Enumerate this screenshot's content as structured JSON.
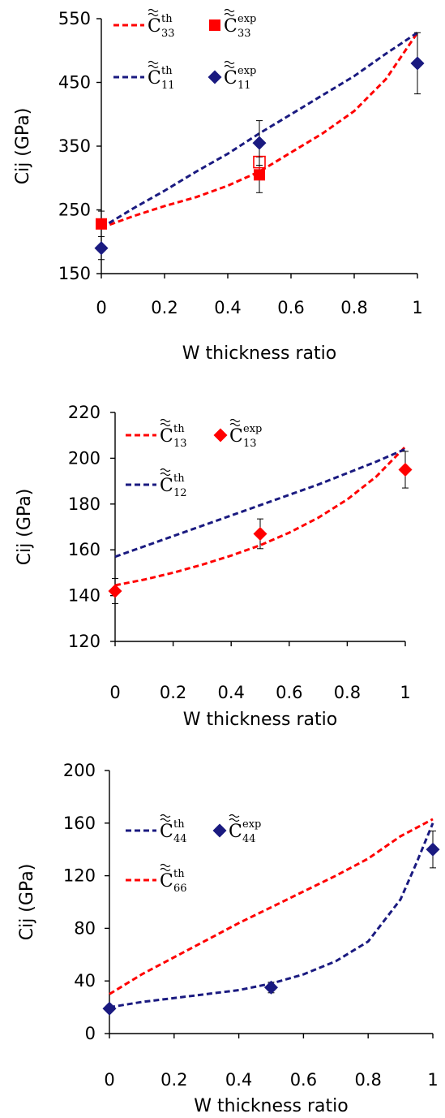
{
  "chart_data": [
    {
      "type": "line",
      "xlabel": "W thickness ratio",
      "ylabel": "Cij (GPa)",
      "xlim": [
        0,
        1
      ],
      "ylim": [
        150,
        550
      ],
      "xticks": [
        0,
        0.2,
        0.4,
        0.6,
        0.8,
        1
      ],
      "xtick_labels": [
        "0",
        "0.2",
        "0.4",
        "0.6",
        "0.8",
        "1"
      ],
      "yticks": [
        150,
        250,
        350,
        450,
        550
      ],
      "ytick_labels": [
        "150",
        "250",
        "350",
        "450",
        "550"
      ],
      "legend_position": "top-left",
      "legend": [
        {
          "kind": "line",
          "color": "#ff0000",
          "main": "C",
          "sup": "th",
          "sub": "33"
        },
        {
          "kind": "marker",
          "marker": "square",
          "color": "#ff0000",
          "main": "C",
          "sup": "exp",
          "sub": "33"
        },
        {
          "kind": "line",
          "color": "#1a1a80",
          "main": "C",
          "sup": "th",
          "sub": "11"
        },
        {
          "kind": "marker",
          "marker": "diamond",
          "color": "#1a1a80",
          "main": "C",
          "sup": "exp",
          "sub": "11"
        }
      ],
      "series": [
        {
          "kind": "line",
          "color": "#ff0000",
          "points": [
            [
              0,
              222
            ],
            [
              0.1,
              240
            ],
            [
              0.2,
              256
            ],
            [
              0.3,
              270
            ],
            [
              0.4,
              288
            ],
            [
              0.5,
              310
            ],
            [
              0.6,
              340
            ],
            [
              0.7,
              370
            ],
            [
              0.8,
              405
            ],
            [
              0.9,
              455
            ],
            [
              1,
              528
            ]
          ]
        },
        {
          "kind": "line",
          "color": "#1a1a80",
          "points": [
            [
              0,
              222
            ],
            [
              0.1,
              252
            ],
            [
              0.2,
              280
            ],
            [
              0.3,
              310
            ],
            [
              0.4,
              338
            ],
            [
              0.5,
              370
            ],
            [
              0.6,
              400
            ],
            [
              0.7,
              430
            ],
            [
              0.8,
              460
            ],
            [
              0.9,
              495
            ],
            [
              1,
              528
            ]
          ]
        },
        {
          "kind": "marker",
          "marker": "square",
          "color": "#ff0000",
          "filled": true,
          "points": [
            {
              "x": 0,
              "y": 228,
              "err": 20
            },
            {
              "x": 0.5,
              "y": 305,
              "err": 28
            }
          ]
        },
        {
          "kind": "marker",
          "marker": "square",
          "color": "#ff0000",
          "filled": false,
          "points": [
            {
              "x": 0.5,
              "y": 325,
              "err": 0
            }
          ]
        },
        {
          "kind": "marker",
          "marker": "diamond",
          "color": "#1a1a80",
          "filled": true,
          "points": [
            {
              "x": 0,
              "y": 190,
              "err": 18
            },
            {
              "x": 0.5,
              "y": 355,
              "err": 35
            },
            {
              "x": 1,
              "y": 480,
              "err": 48
            }
          ]
        }
      ]
    },
    {
      "type": "line",
      "xlabel": "W thickness ratio",
      "ylabel": "Cij (GPa)",
      "xlim": [
        0,
        1
      ],
      "ylim": [
        120,
        220
      ],
      "xticks": [
        0,
        0.2,
        0.4,
        0.6,
        0.8,
        1
      ],
      "xtick_labels": [
        "0",
        "0.2",
        "0.4",
        "0.6",
        "0.8",
        "1"
      ],
      "yticks": [
        120,
        140,
        160,
        180,
        200,
        220
      ],
      "ytick_labels": [
        "120",
        "140",
        "160",
        "180",
        "200",
        "220"
      ],
      "legend_position": "top-left",
      "legend": [
        {
          "kind": "line",
          "color": "#ff0000",
          "main": "C",
          "sup": "th",
          "sub": "13"
        },
        {
          "kind": "marker",
          "marker": "diamond",
          "color": "#ff0000",
          "main": "C",
          "sup": "exp",
          "sub": "13"
        },
        {
          "kind": "line",
          "color": "#1a1a80",
          "main": "C",
          "sup": "th",
          "sub": "12"
        }
      ],
      "series": [
        {
          "kind": "line",
          "color": "#ff0000",
          "points": [
            [
              0,
              144.5
            ],
            [
              0.1,
              147
            ],
            [
              0.2,
              150
            ],
            [
              0.3,
              153.5
            ],
            [
              0.4,
              157.5
            ],
            [
              0.5,
              162
            ],
            [
              0.6,
              167.5
            ],
            [
              0.7,
              174
            ],
            [
              0.8,
              182
            ],
            [
              0.9,
              192
            ],
            [
              1,
              205
            ]
          ]
        },
        {
          "kind": "line",
          "color": "#1a1a80",
          "points": [
            [
              0,
              157
            ],
            [
              0.1,
              161.5
            ],
            [
              0.2,
              166
            ],
            [
              0.3,
              170.5
            ],
            [
              0.4,
              175
            ],
            [
              0.5,
              179.5
            ],
            [
              0.6,
              184
            ],
            [
              0.7,
              188.5
            ],
            [
              0.8,
              193.5
            ],
            [
              0.9,
              198.5
            ],
            [
              1,
              204
            ]
          ]
        },
        {
          "kind": "marker",
          "marker": "diamond",
          "color": "#ff0000",
          "filled": true,
          "points": [
            {
              "x": 0,
              "y": 142,
              "err": 5.5
            },
            {
              "x": 0.5,
              "y": 167,
              "err": 6.5
            },
            {
              "x": 1,
              "y": 195,
              "err": 8
            }
          ]
        }
      ]
    },
    {
      "type": "line",
      "xlabel": "W thickness ratio",
      "ylabel": "Cij (GPa)",
      "xlim": [
        0,
        1
      ],
      "ylim": [
        0,
        200
      ],
      "xticks": [
        0,
        0.2,
        0.4,
        0.6,
        0.8,
        1
      ],
      "xtick_labels": [
        "0",
        "0.2",
        "0.4",
        "0.6",
        "0.8",
        "1"
      ],
      "yticks": [
        0,
        40,
        80,
        120,
        160,
        200
      ],
      "ytick_labels": [
        "0",
        "40",
        "80",
        "120",
        "160",
        "200"
      ],
      "legend_position": "top-left",
      "legend": [
        {
          "kind": "line",
          "color": "#1a1a80",
          "main": "C",
          "sup": "th",
          "sub": "44"
        },
        {
          "kind": "marker",
          "marker": "diamond",
          "color": "#1a1a80",
          "main": "C",
          "sup": "exp",
          "sub": "44"
        },
        {
          "kind": "line",
          "color": "#ff0000",
          "main": "C",
          "sup": "th",
          "sub": "66"
        }
      ],
      "series": [
        {
          "kind": "line",
          "color": "#ff0000",
          "points": [
            [
              0,
              30
            ],
            [
              0.1,
              45
            ],
            [
              0.2,
              58
            ],
            [
              0.3,
              71
            ],
            [
              0.4,
              84
            ],
            [
              0.5,
              96
            ],
            [
              0.6,
              108
            ],
            [
              0.7,
              120
            ],
            [
              0.8,
              133
            ],
            [
              0.9,
              150
            ],
            [
              1,
              163
            ]
          ]
        },
        {
          "kind": "line",
          "color": "#1a1a80",
          "points": [
            [
              0,
              20
            ],
            [
              0.1,
              24
            ],
            [
              0.2,
              27
            ],
            [
              0.3,
              30
            ],
            [
              0.4,
              33
            ],
            [
              0.5,
              38
            ],
            [
              0.6,
              45
            ],
            [
              0.7,
              55
            ],
            [
              0.8,
              70
            ],
            [
              0.9,
              102
            ],
            [
              0.95,
              130
            ],
            [
              1,
              160
            ]
          ]
        },
        {
          "kind": "marker",
          "marker": "diamond",
          "color": "#1a1a80",
          "filled": true,
          "points": [
            {
              "x": 0,
              "y": 19,
              "err": 2
            },
            {
              "x": 0.5,
              "y": 35,
              "err": 4
            },
            {
              "x": 1,
              "y": 140,
              "err": 14
            }
          ]
        }
      ]
    }
  ]
}
